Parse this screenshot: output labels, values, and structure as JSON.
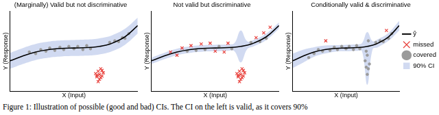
{
  "chart_data": [
    {
      "type": "scatter",
      "title": "(Marginally) Valid but not discriminative",
      "x_label": "X (Input)",
      "y_label": "Y (Response)",
      "xlim": [
        0,
        10
      ],
      "ylim": [
        0,
        10
      ],
      "tick_labels": false,
      "grid": false,
      "series": [
        {
          "name": "ŷ",
          "type": "line",
          "color": "#000000",
          "line_style": "solid",
          "x": [
            0,
            1,
            2,
            3,
            4,
            5,
            6,
            6.5,
            7,
            7.5,
            8,
            9,
            10
          ],
          "values": [
            3.8,
            4.4,
            4.9,
            5.2,
            5.35,
            5.4,
            5.45,
            5.5,
            5.6,
            5.75,
            6.0,
            6.8,
            8.2
          ]
        },
        {
          "name": "missed",
          "type": "scatter",
          "color": "#e8413c",
          "marker": "x",
          "x": [
            6.7,
            6.8,
            6.9,
            7.0,
            7.0,
            7.1,
            7.2,
            7.3,
            6.9,
            7.1,
            7.2,
            6.8
          ],
          "values": [
            2.2,
            1.8,
            2.5,
            1.5,
            2.1,
            2.8,
            1.9,
            2.3,
            1.2,
            1.7,
            2.6,
            2.0
          ]
        },
        {
          "name": "covered",
          "type": "scatter",
          "color": "#9a9a9a",
          "marker": "o",
          "x": [
            1.5,
            2.0,
            2.4,
            2.8,
            3.1,
            3.5,
            3.9,
            4.2,
            4.6,
            5.0,
            5.3,
            5.7,
            6.0,
            6.3,
            7.8,
            8.2,
            8.5,
            8.8,
            9.0,
            9.3
          ],
          "values": [
            4.9,
            4.7,
            5.2,
            5.0,
            5.4,
            5.1,
            5.5,
            5.2,
            5.6,
            5.3,
            5.6,
            5.2,
            5.7,
            5.3,
            6.1,
            6.3,
            6.2,
            6.7,
            6.6,
            7.2
          ]
        },
        {
          "name": "90% CI",
          "type": "band",
          "color": "#c9d3ee",
          "x": [
            0,
            1,
            2,
            3,
            4,
            5,
            6,
            6.5,
            7,
            7.5,
            8,
            9,
            10
          ],
          "lower": [
            2.8,
            3.4,
            3.9,
            4.2,
            4.35,
            4.4,
            4.45,
            4.5,
            4.6,
            4.75,
            5.0,
            5.8,
            7.2
          ],
          "upper": [
            4.8,
            5.4,
            5.9,
            6.2,
            6.35,
            6.4,
            6.45,
            6.5,
            6.6,
            6.75,
            7.0,
            7.8,
            9.2
          ]
        }
      ]
    },
    {
      "type": "scatter",
      "title": "Not valid but discriminative",
      "x_label": "X (Input)",
      "y_label": "Y (Response)",
      "xlim": [
        0,
        10
      ],
      "ylim": [
        0,
        10
      ],
      "tick_labels": false,
      "grid": false,
      "series": [
        {
          "name": "ŷ",
          "type": "line",
          "color": "#000000",
          "line_style": "solid",
          "x": [
            0,
            1,
            2,
            3,
            4,
            5,
            6,
            6.5,
            7,
            7.5,
            8,
            9,
            10
          ],
          "values": [
            3.8,
            4.4,
            4.9,
            5.2,
            5.35,
            5.4,
            5.45,
            5.5,
            5.6,
            5.75,
            6.0,
            6.8,
            8.2
          ]
        },
        {
          "name": "missed",
          "type": "scatter",
          "color": "#e8413c",
          "marker": "x",
          "x": [
            1.5,
            2.0,
            2.4,
            3.1,
            3.9,
            4.6,
            5.0,
            5.7,
            6.0,
            8.2,
            8.8,
            9.3,
            6.7,
            6.8,
            6.9,
            7.0,
            7.0,
            7.1,
            7.2,
            7.3,
            6.9,
            7.1,
            7.2,
            6.8
          ],
          "values": [
            4.9,
            4.5,
            5.4,
            5.7,
            5.9,
            6.0,
            5.0,
            4.9,
            6.0,
            6.7,
            7.3,
            8.0,
            2.2,
            1.8,
            2.5,
            1.5,
            2.1,
            2.8,
            1.9,
            2.3,
            1.2,
            1.7,
            2.6,
            2.0
          ]
        },
        {
          "name": "covered",
          "type": "scatter",
          "color": "#9a9a9a",
          "marker": "o",
          "x": [
            2.8,
            3.5,
            4.2,
            5.3,
            6.3,
            7.8,
            8.5,
            9.0
          ],
          "values": [
            5.0,
            5.1,
            5.2,
            5.6,
            5.3,
            6.1,
            6.2,
            6.6
          ]
        },
        {
          "name": "90% CI",
          "type": "band",
          "color": "#c9d3ee",
          "x": [
            0,
            1,
            2,
            3,
            4,
            5,
            6,
            6.5,
            7,
            7.5,
            8,
            9,
            10
          ],
          "lower": [
            3.4,
            4.0,
            4.5,
            4.8,
            4.95,
            5.0,
            5.05,
            5.0,
            3.6,
            5.25,
            5.6,
            6.4,
            7.8
          ],
          "upper": [
            4.2,
            4.8,
            5.3,
            5.6,
            5.75,
            5.8,
            5.85,
            6.0,
            7.6,
            6.25,
            6.4,
            7.2,
            8.6
          ]
        }
      ]
    },
    {
      "type": "scatter",
      "title": "Conditionally valid & discriminative",
      "x_label": "X (Input)",
      "y_label": "Y (Response)",
      "xlim": [
        0,
        10
      ],
      "ylim": [
        0,
        10
      ],
      "tick_labels": false,
      "grid": false,
      "legend": "right",
      "series": [
        {
          "name": "ŷ",
          "type": "line",
          "color": "#000000",
          "line_style": "solid",
          "x": [
            0,
            1,
            2,
            3,
            4,
            5,
            6,
            6.5,
            7,
            7.5,
            8,
            9,
            10
          ],
          "values": [
            3.8,
            4.4,
            4.9,
            5.2,
            5.35,
            5.4,
            5.45,
            5.5,
            5.6,
            5.75,
            6.0,
            6.8,
            8.2
          ]
        },
        {
          "name": "missed",
          "type": "scatter",
          "color": "#e8413c",
          "marker": "x",
          "x": [
            3.1,
            8.8
          ],
          "values": [
            6.3,
            7.6
          ]
        },
        {
          "name": "covered",
          "type": "scatter",
          "color": "#9a9a9a",
          "marker": "o",
          "x": [
            1.5,
            2.0,
            2.4,
            2.8,
            3.5,
            3.9,
            4.2,
            4.6,
            5.0,
            5.3,
            5.7,
            6.0,
            6.3,
            7.8,
            8.2,
            8.5,
            9.0,
            9.3,
            6.8,
            6.9,
            7.0,
            7.0,
            7.1,
            7.2,
            6.9,
            7.1
          ],
          "values": [
            4.2,
            4.7,
            5.2,
            5.0,
            5.1,
            5.5,
            5.2,
            5.6,
            5.3,
            5.6,
            5.2,
            5.7,
            5.3,
            6.1,
            6.3,
            6.2,
            6.6,
            7.2,
            3.8,
            3.0,
            2.1,
            4.5,
            2.8,
            3.4,
            5.0,
            6.3
          ]
        },
        {
          "name": "90% CI",
          "type": "band",
          "color": "#c9d3ee",
          "x": [
            0,
            1,
            2,
            3,
            4,
            5,
            6,
            6.5,
            7,
            7.5,
            8,
            9,
            10
          ],
          "lower": [
            2.9,
            3.6,
            4.3,
            4.7,
            4.95,
            5.0,
            5.05,
            5.0,
            0.8,
            5.25,
            5.5,
            6.3,
            7.6
          ],
          "upper": [
            4.7,
            5.2,
            5.5,
            5.7,
            5.75,
            5.8,
            5.85,
            6.0,
            7.4,
            6.25,
            6.5,
            7.3,
            8.8
          ]
        }
      ]
    }
  ],
  "caption": "Figure 1: Illustration of possible (good and bad) CIs. The CI on the left is valid, as it covers 90%"
}
